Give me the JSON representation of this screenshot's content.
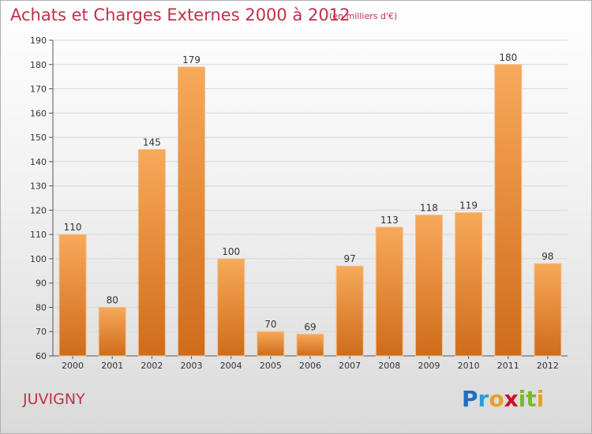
{
  "title": "Achats et Charges Externes 2000 à 2012",
  "subtitle": "(en milliers d'€)",
  "commune": "JUVIGNY",
  "brand": {
    "letters": [
      "P",
      "r",
      "o",
      "x",
      "i",
      "t",
      "i"
    ],
    "colors": [
      "#1e6fc4",
      "#2e9bd6",
      "#e8a024",
      "#c8102e",
      "#7cb82f",
      "#7cb82f",
      "#e8a024"
    ]
  },
  "colors": {
    "bar_top": "#f7a95a",
    "bar_bottom": "#cf6c1a",
    "title": "#c0304a",
    "axis_text": "#333333",
    "grid": "#d8d8d8"
  },
  "chart_data": {
    "type": "bar",
    "categories": [
      "2000",
      "2001",
      "2002",
      "2003",
      "2004",
      "2005",
      "2006",
      "2007",
      "2008",
      "2009",
      "2010",
      "2011",
      "2012"
    ],
    "values": [
      110,
      80,
      145,
      179,
      100,
      70,
      69,
      97,
      113,
      118,
      119,
      180,
      98
    ],
    "ylim": [
      60,
      190
    ],
    "yticks": [
      60,
      70,
      80,
      90,
      100,
      110,
      120,
      130,
      140,
      150,
      160,
      170,
      180,
      190
    ],
    "grid": true,
    "xlabel": "",
    "ylabel": ""
  }
}
